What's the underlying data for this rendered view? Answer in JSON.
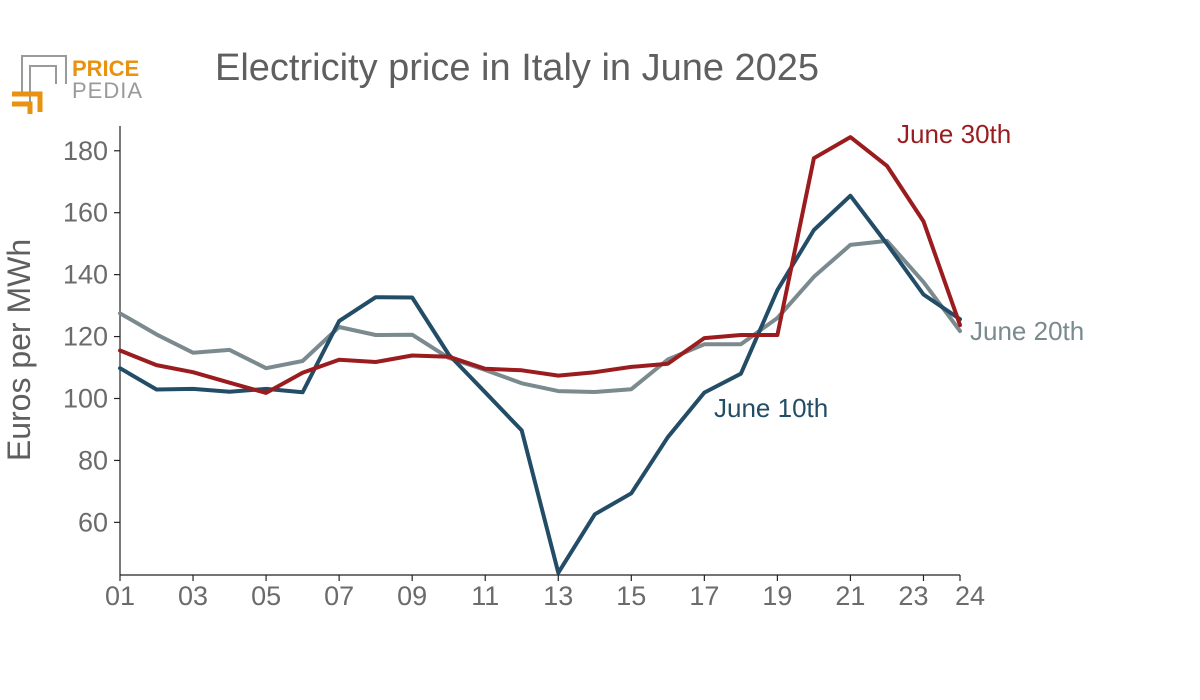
{
  "logo": {
    "line1": "PRICE",
    "line2": "PEDIA"
  },
  "colors": {
    "june10": "#234d66",
    "june20": "#7a8a8e",
    "june30": "#9b1c1f",
    "logo_orange": "#e8920f",
    "logo_gray": "#9a9a9a"
  },
  "chart_data": {
    "type": "line",
    "title": "Electricity price in Italy in June 2025",
    "xlabel": "",
    "ylabel": "Euros per MWh",
    "ylim": [
      43,
      188
    ],
    "yticks": [
      60,
      80,
      100,
      120,
      140,
      160,
      180
    ],
    "xlim": [
      1,
      24
    ],
    "x": [
      1,
      2,
      3,
      4,
      5,
      6,
      7,
      8,
      9,
      10,
      11,
      12,
      13,
      14,
      15,
      16,
      17,
      18,
      19,
      20,
      21,
      22,
      23,
      24
    ],
    "xtick_labels": [
      "01",
      "03",
      "05",
      "07",
      "09",
      "11",
      "13",
      "15",
      "17",
      "19",
      "21",
      "23",
      "24"
    ],
    "xtick_positions": [
      1,
      3,
      5,
      7,
      9,
      11,
      13,
      15,
      17,
      19,
      21,
      23,
      24
    ],
    "series": [
      {
        "key": "june20",
        "name": "June 20th",
        "values": [
          127.5,
          120.7,
          114.8,
          115.7,
          109.8,
          112.1,
          123.1,
          120.5,
          120.6,
          113.1,
          109.2,
          104.9,
          102.4,
          102.1,
          103.0,
          112.6,
          117.5,
          117.5,
          126.0,
          139.3,
          149.6,
          150.9,
          137.6,
          121.8
        ]
      },
      {
        "key": "june10",
        "name": "June 10th",
        "values": [
          109.8,
          102.9,
          103.1,
          102.2,
          103.1,
          102.0,
          125.0,
          132.7,
          132.6,
          114.2,
          102.0,
          89.7,
          43.7,
          62.6,
          69.4,
          87.5,
          101.9,
          108.0,
          135.0,
          154.4,
          165.5,
          149.9,
          133.6,
          125.6
        ]
      },
      {
        "key": "june30",
        "name": "June 30th",
        "values": [
          115.5,
          110.8,
          108.5,
          105.1,
          101.8,
          108.3,
          112.5,
          111.8,
          113.9,
          113.5,
          109.6,
          109.1,
          107.4,
          108.5,
          110.2,
          111.2,
          119.5,
          120.5,
          120.5,
          177.6,
          184.4,
          175.1,
          157.2,
          123.7
        ]
      }
    ]
  }
}
